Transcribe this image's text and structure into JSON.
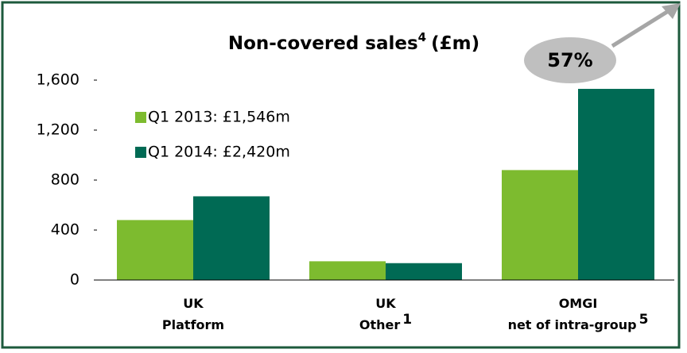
{
  "chart_data": {
    "type": "bar",
    "title": "Non-covered sales",
    "title_footnote": "4",
    "title_unit": "(£m)",
    "categories": [
      [
        "UK",
        "Platform"
      ],
      [
        "UK",
        "Other"
      ],
      [
        "OMGI",
        "net of intra-group"
      ]
    ],
    "category_footnotes": [
      null,
      "1",
      "5"
    ],
    "series": [
      {
        "name": "Q1 2013: £1,546m",
        "color": "#7dbb2f",
        "values": [
          480,
          150,
          880
        ]
      },
      {
        "name": "Q1 2014: £2,420m",
        "color": "#006a54",
        "values": [
          670,
          135,
          1530
        ]
      }
    ],
    "ylim": [
      0,
      1600
    ],
    "yticks": [
      0,
      400,
      800,
      {
        "value": 1200,
        "label": "1,200"
      },
      {
        "value": 1600,
        "label": "1,600"
      }
    ],
    "annotation": "57%",
    "grid": false
  }
}
